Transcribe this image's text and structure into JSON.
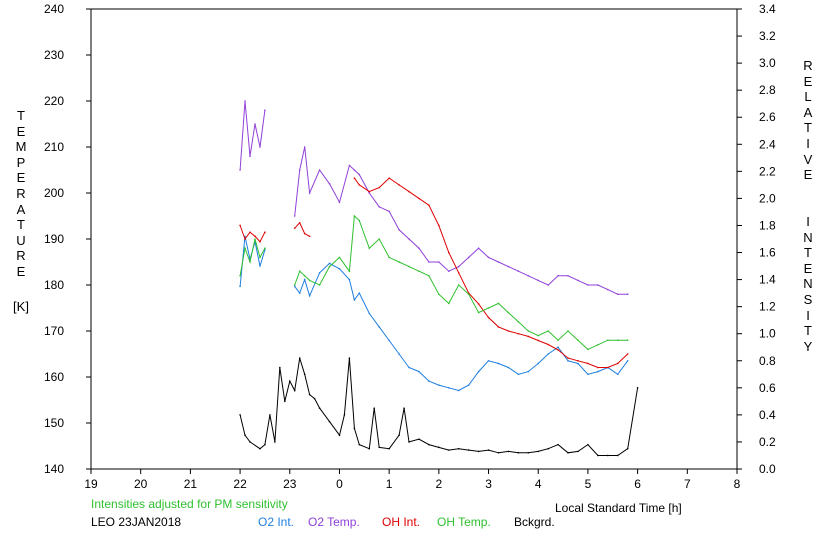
{
  "chart_data": {
    "type": "line",
    "left_axis_label": "TEMPERATURE",
    "left_axis_unit": "[K]",
    "right_axis_label": "RELATIVE  INTENSITY",
    "x_axis_label": "Local Standard Time [h]",
    "note": "Intensities adjusted for PM sensitivity",
    "station": "LEO 23JAN2018",
    "x_ticks": [
      "19",
      "20",
      "21",
      "22",
      "23",
      "0",
      "1",
      "2",
      "3",
      "4",
      "5",
      "6",
      "7",
      "8"
    ],
    "y_left_ticks": [
      140,
      150,
      160,
      170,
      180,
      190,
      200,
      210,
      220,
      230,
      240
    ],
    "y_right_ticks": [
      "0.0",
      "0.2",
      "0.4",
      "0.6",
      "0.8",
      "1.0",
      "1.2",
      "1.4",
      "1.6",
      "1.8",
      "2.0",
      "2.2",
      "2.4",
      "2.6",
      "2.8",
      "3.0",
      "3.2",
      "3.4"
    ],
    "x_range": [
      19,
      32
    ],
    "y_left_range": [
      140,
      240
    ],
    "y_right_range": [
      0,
      3.4
    ],
    "colors": {
      "o2_int": "#1f7fe0",
      "o2_temp": "#9040d8",
      "oh_int": "#e00000",
      "oh_temp": "#30c030",
      "bckgrd": "#000000",
      "note": "#30c030"
    },
    "series": [
      {
        "name": "O2 Int.",
        "color": "#1f7fe0",
        "axis": "right",
        "x": [
          22.0,
          22.1,
          22.2,
          22.3,
          22.4,
          22.5,
          23.1,
          23.2,
          23.3,
          23.4,
          23.6,
          23.8,
          24.0,
          24.2,
          24.3,
          24.4,
          24.6,
          24.8,
          25.0,
          25.2,
          25.4,
          25.6,
          25.8,
          26.0,
          26.2,
          26.4,
          26.6,
          26.8,
          27.0,
          27.2,
          27.4,
          27.6,
          27.8,
          28.0,
          28.2,
          28.4,
          28.6,
          28.8,
          29.0,
          29.2,
          29.4,
          29.6,
          29.8
        ],
        "y": [
          1.35,
          1.72,
          1.55,
          1.68,
          1.5,
          1.62,
          1.35,
          1.3,
          1.4,
          1.28,
          1.45,
          1.52,
          1.48,
          1.4,
          1.25,
          1.3,
          1.15,
          1.05,
          0.95,
          0.85,
          0.75,
          0.72,
          0.65,
          0.62,
          0.6,
          0.58,
          0.62,
          0.72,
          0.8,
          0.78,
          0.75,
          0.7,
          0.72,
          0.78,
          0.85,
          0.9,
          0.8,
          0.78,
          0.7,
          0.72,
          0.75,
          0.7,
          0.8
        ]
      },
      {
        "name": "O2 Temp.",
        "color": "#9040d8",
        "axis": "left",
        "x": [
          22.0,
          22.1,
          22.2,
          22.3,
          22.4,
          22.5,
          23.1,
          23.2,
          23.3,
          23.4,
          23.6,
          23.8,
          24.0,
          24.2,
          24.3,
          24.4,
          24.6,
          24.8,
          25.0,
          25.2,
          25.4,
          25.6,
          25.8,
          26.0,
          26.2,
          26.4,
          26.6,
          26.8,
          27.0,
          27.2,
          27.4,
          27.6,
          27.8,
          28.0,
          28.2,
          28.4,
          28.6,
          28.8,
          29.0,
          29.2,
          29.4,
          29.6,
          29.8
        ],
        "y": [
          205,
          220,
          208,
          215,
          210,
          218,
          195,
          205,
          210,
          200,
          205,
          202,
          198,
          206,
          205,
          204,
          200,
          197,
          196,
          192,
          190,
          188,
          185,
          185,
          183,
          184,
          186,
          188,
          186,
          185,
          184,
          183,
          182,
          181,
          180,
          182,
          182,
          181,
          180,
          180,
          179,
          178,
          178
        ]
      },
      {
        "name": "OH Int.",
        "color": "#e00000",
        "axis": "right",
        "x": [
          22.0,
          22.1,
          22.2,
          22.3,
          22.4,
          22.5,
          23.1,
          23.2,
          23.3,
          23.4,
          24.3,
          24.4,
          24.6,
          24.8,
          25.0,
          25.2,
          25.4,
          25.6,
          25.8,
          26.0,
          26.2,
          26.4,
          26.6,
          26.8,
          27.0,
          27.2,
          27.4,
          27.6,
          27.8,
          28.0,
          28.2,
          28.4,
          28.6,
          28.8,
          29.0,
          29.2,
          29.4,
          29.6,
          29.8
        ],
        "y": [
          1.8,
          1.7,
          1.75,
          1.72,
          1.68,
          1.75,
          1.78,
          1.82,
          1.74,
          1.72,
          2.15,
          2.1,
          2.05,
          2.08,
          2.15,
          2.1,
          2.05,
          2.0,
          1.95,
          1.8,
          1.6,
          1.45,
          1.3,
          1.22,
          1.12,
          1.05,
          1.02,
          1.0,
          0.98,
          0.95,
          0.92,
          0.88,
          0.82,
          0.8,
          0.78,
          0.75,
          0.75,
          0.78,
          0.85
        ]
      },
      {
        "name": "OH Temp.",
        "color": "#30c030",
        "axis": "left",
        "x": [
          22.0,
          22.1,
          22.2,
          22.3,
          22.4,
          22.5,
          23.1,
          23.2,
          23.3,
          23.4,
          23.6,
          23.8,
          24.0,
          24.2,
          24.3,
          24.4,
          24.6,
          24.8,
          25.0,
          25.2,
          25.4,
          25.6,
          25.8,
          26.0,
          26.2,
          26.4,
          26.6,
          26.8,
          27.0,
          27.2,
          27.4,
          27.6,
          27.8,
          28.0,
          28.2,
          28.4,
          28.6,
          28.8,
          29.0,
          29.2,
          29.4,
          29.6,
          29.8
        ],
        "y": [
          182,
          188,
          185,
          190,
          186,
          188,
          180,
          183,
          182,
          181,
          180,
          184,
          186,
          183,
          195,
          194,
          188,
          190,
          186,
          185,
          184,
          183,
          182,
          178,
          176,
          180,
          178,
          174,
          175,
          176,
          174,
          172,
          170,
          169,
          170,
          168,
          170,
          168,
          166,
          167,
          168,
          168,
          168
        ]
      },
      {
        "name": "Bckgrd.",
        "color": "#000000",
        "axis": "right",
        "x": [
          22.0,
          22.1,
          22.2,
          22.4,
          22.5,
          22.6,
          22.7,
          22.8,
          22.9,
          23.0,
          23.1,
          23.2,
          23.3,
          23.4,
          23.5,
          23.6,
          23.8,
          24.0,
          24.1,
          24.2,
          24.3,
          24.4,
          24.6,
          24.7,
          24.8,
          25.0,
          25.2,
          25.3,
          25.4,
          25.6,
          25.8,
          26.0,
          26.2,
          26.4,
          26.6,
          26.8,
          27.0,
          27.2,
          27.4,
          27.6,
          27.8,
          28.0,
          28.2,
          28.4,
          28.6,
          28.8,
          29.0,
          29.2,
          29.4,
          29.6,
          29.8,
          30.0
        ],
        "y": [
          0.4,
          0.25,
          0.2,
          0.15,
          0.18,
          0.4,
          0.2,
          0.75,
          0.5,
          0.65,
          0.58,
          0.82,
          0.7,
          0.55,
          0.52,
          0.45,
          0.35,
          0.25,
          0.4,
          0.82,
          0.3,
          0.18,
          0.15,
          0.45,
          0.16,
          0.15,
          0.25,
          0.45,
          0.2,
          0.22,
          0.18,
          0.16,
          0.14,
          0.15,
          0.14,
          0.13,
          0.14,
          0.12,
          0.13,
          0.12,
          0.12,
          0.13,
          0.15,
          0.18,
          0.12,
          0.13,
          0.18,
          0.1,
          0.1,
          0.1,
          0.15,
          0.6
        ]
      }
    ]
  }
}
